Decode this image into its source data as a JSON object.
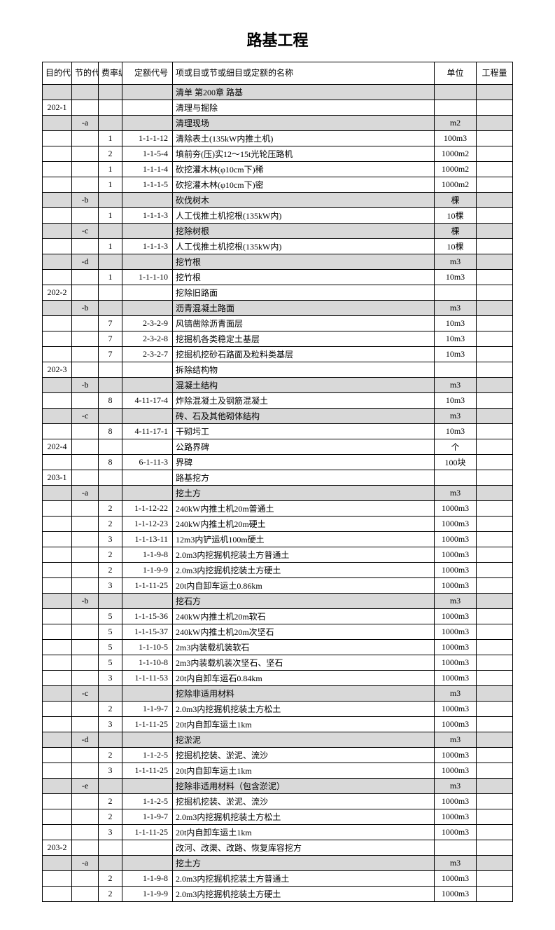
{
  "title": "路基工程",
  "header": {
    "mu": "目的代号",
    "jie": "节的代号",
    "fei": "费率编号",
    "ding": "定额代号",
    "name": "项或目或节或细目或定额的名称",
    "unit": "单位",
    "qty": "工程量"
  },
  "rows": [
    {
      "shaded": true,
      "mu": "",
      "jie": "",
      "fei": "",
      "ding": "",
      "name": "清单 第200章  路基",
      "unit": "",
      "qty": ""
    },
    {
      "shaded": false,
      "mu": "202-1",
      "jie": "",
      "fei": "",
      "ding": "",
      "name": "清理与掘除",
      "unit": "",
      "qty": ""
    },
    {
      "shaded": true,
      "mu": "",
      "jie": "-a",
      "fei": "",
      "ding": "",
      "name": "清理现场",
      "unit": "m2",
      "qty": ""
    },
    {
      "shaded": false,
      "mu": "",
      "jie": "",
      "fei": "1",
      "ding": "1-1-1-12",
      "name": "清除表土(135kW内推土机)",
      "unit": "100m3",
      "qty": ""
    },
    {
      "shaded": false,
      "mu": "",
      "jie": "",
      "fei": "2",
      "ding": "1-1-5-4",
      "name": "填前夯(压)实12～15t光轮压路机",
      "unit": "1000m2",
      "qty": ""
    },
    {
      "shaded": false,
      "mu": "",
      "jie": "",
      "fei": "1",
      "ding": "1-1-1-4",
      "name": "砍挖灌木林(φ10cm下)稀",
      "unit": "1000m2",
      "qty": ""
    },
    {
      "shaded": false,
      "mu": "",
      "jie": "",
      "fei": "1",
      "ding": "1-1-1-5",
      "name": "砍挖灌木林(φ10cm下)密",
      "unit": "1000m2",
      "qty": ""
    },
    {
      "shaded": true,
      "mu": "",
      "jie": "-b",
      "fei": "",
      "ding": "",
      "name": "砍伐树木",
      "unit": "棵",
      "qty": ""
    },
    {
      "shaded": false,
      "mu": "",
      "jie": "",
      "fei": "1",
      "ding": "1-1-1-3",
      "name": "人工伐推土机挖根(135kW内)",
      "unit": "10棵",
      "qty": ""
    },
    {
      "shaded": true,
      "mu": "",
      "jie": "-c",
      "fei": "",
      "ding": "",
      "name": "挖除树根",
      "unit": "棵",
      "qty": ""
    },
    {
      "shaded": false,
      "mu": "",
      "jie": "",
      "fei": "1",
      "ding": "1-1-1-3",
      "name": "人工伐推土机挖根(135kW内)",
      "unit": "10棵",
      "qty": ""
    },
    {
      "shaded": true,
      "mu": "",
      "jie": "-d",
      "fei": "",
      "ding": "",
      "name": "挖竹根",
      "unit": "m3",
      "qty": ""
    },
    {
      "shaded": false,
      "mu": "",
      "jie": "",
      "fei": "1",
      "ding": "1-1-1-10",
      "name": "挖竹根",
      "unit": "10m3",
      "qty": ""
    },
    {
      "shaded": false,
      "mu": "202-2",
      "jie": "",
      "fei": "",
      "ding": "",
      "name": "挖除旧路面",
      "unit": "",
      "qty": ""
    },
    {
      "shaded": true,
      "mu": "",
      "jie": "-b",
      "fei": "",
      "ding": "",
      "name": "沥青混凝土路面",
      "unit": "m3",
      "qty": ""
    },
    {
      "shaded": false,
      "mu": "",
      "jie": "",
      "fei": "7",
      "ding": "2-3-2-9",
      "name": "风镐凿除沥青面层",
      "unit": "10m3",
      "qty": ""
    },
    {
      "shaded": false,
      "mu": "",
      "jie": "",
      "fei": "7",
      "ding": "2-3-2-8",
      "name": "挖掘机各类稳定土基层",
      "unit": "10m3",
      "qty": ""
    },
    {
      "shaded": false,
      "mu": "",
      "jie": "",
      "fei": "7",
      "ding": "2-3-2-7",
      "name": "挖掘机挖砂石路面及粒料类基层",
      "unit": "10m3",
      "qty": ""
    },
    {
      "shaded": false,
      "mu": "202-3",
      "jie": "",
      "fei": "",
      "ding": "",
      "name": "拆除结构物",
      "unit": "",
      "qty": ""
    },
    {
      "shaded": true,
      "mu": "",
      "jie": "-b",
      "fei": "",
      "ding": "",
      "name": "混凝土结构",
      "unit": "m3",
      "qty": ""
    },
    {
      "shaded": false,
      "mu": "",
      "jie": "",
      "fei": "8",
      "ding": "4-11-17-4",
      "name": "炸除混凝土及钢筋混凝土",
      "unit": "10m3",
      "qty": ""
    },
    {
      "shaded": true,
      "mu": "",
      "jie": "-c",
      "fei": "",
      "ding": "",
      "name": "砖、石及其他砌体结构",
      "unit": "m3",
      "qty": ""
    },
    {
      "shaded": false,
      "mu": "",
      "jie": "",
      "fei": "8",
      "ding": "4-11-17-1",
      "name": "干砌圬工",
      "unit": "10m3",
      "qty": ""
    },
    {
      "shaded": false,
      "mu": "202-4",
      "jie": "",
      "fei": "",
      "ding": "",
      "name": "公路界碑",
      "unit": "个",
      "qty": ""
    },
    {
      "shaded": false,
      "mu": "",
      "jie": "",
      "fei": "8",
      "ding": "6-1-11-3",
      "name": "界碑",
      "unit": "100块",
      "qty": ""
    },
    {
      "shaded": false,
      "mu": "203-1",
      "jie": "",
      "fei": "",
      "ding": "",
      "name": "路基挖方",
      "unit": "",
      "qty": ""
    },
    {
      "shaded": true,
      "mu": "",
      "jie": "-a",
      "fei": "",
      "ding": "",
      "name": "挖土方",
      "unit": "m3",
      "qty": ""
    },
    {
      "shaded": false,
      "mu": "",
      "jie": "",
      "fei": "2",
      "ding": "1-1-12-22",
      "name": "240kW内推土机20m普通土",
      "unit": "1000m3",
      "qty": ""
    },
    {
      "shaded": false,
      "mu": "",
      "jie": "",
      "fei": "2",
      "ding": "1-1-12-23",
      "name": "240kW内推土机20m硬土",
      "unit": "1000m3",
      "qty": ""
    },
    {
      "shaded": false,
      "mu": "",
      "jie": "",
      "fei": "3",
      "ding": "1-1-13-11",
      "name": "12m3内铲运机100m硬土",
      "unit": "1000m3",
      "qty": ""
    },
    {
      "shaded": false,
      "mu": "",
      "jie": "",
      "fei": "2",
      "ding": "1-1-9-8",
      "name": "2.0m3内挖掘机挖装土方普通土",
      "unit": "1000m3",
      "qty": ""
    },
    {
      "shaded": false,
      "mu": "",
      "jie": "",
      "fei": "2",
      "ding": "1-1-9-9",
      "name": "2.0m3内挖掘机挖装土方硬土",
      "unit": "1000m3",
      "qty": ""
    },
    {
      "shaded": false,
      "mu": "",
      "jie": "",
      "fei": "3",
      "ding": "1-1-11-25",
      "name": "20t内自卸车运土0.86km",
      "unit": "1000m3",
      "qty": ""
    },
    {
      "shaded": true,
      "mu": "",
      "jie": "-b",
      "fei": "",
      "ding": "",
      "name": "挖石方",
      "unit": "m3",
      "qty": ""
    },
    {
      "shaded": false,
      "mu": "",
      "jie": "",
      "fei": "5",
      "ding": "1-1-15-36",
      "name": "240kW内推土机20m软石",
      "unit": "1000m3",
      "qty": ""
    },
    {
      "shaded": false,
      "mu": "",
      "jie": "",
      "fei": "5",
      "ding": "1-1-15-37",
      "name": "240kW内推土机20m次坚石",
      "unit": "1000m3",
      "qty": ""
    },
    {
      "shaded": false,
      "mu": "",
      "jie": "",
      "fei": "5",
      "ding": "1-1-10-5",
      "name": "2m3内装载机装软石",
      "unit": "1000m3",
      "qty": ""
    },
    {
      "shaded": false,
      "mu": "",
      "jie": "",
      "fei": "5",
      "ding": "1-1-10-8",
      "name": "2m3内装载机装次坚石、坚石",
      "unit": "1000m3",
      "qty": ""
    },
    {
      "shaded": false,
      "mu": "",
      "jie": "",
      "fei": "3",
      "ding": "1-1-11-53",
      "name": "20t内自卸车运石0.84km",
      "unit": "1000m3",
      "qty": ""
    },
    {
      "shaded": true,
      "mu": "",
      "jie": "-c",
      "fei": "",
      "ding": "",
      "name": "挖除非适用材料",
      "unit": "m3",
      "qty": ""
    },
    {
      "shaded": false,
      "mu": "",
      "jie": "",
      "fei": "2",
      "ding": "1-1-9-7",
      "name": "2.0m3内挖掘机挖装土方松土",
      "unit": "1000m3",
      "qty": ""
    },
    {
      "shaded": false,
      "mu": "",
      "jie": "",
      "fei": "3",
      "ding": "1-1-11-25",
      "name": "20t内自卸车运土1km",
      "unit": "1000m3",
      "qty": ""
    },
    {
      "shaded": true,
      "mu": "",
      "jie": "-d",
      "fei": "",
      "ding": "",
      "name": "挖淤泥",
      "unit": "m3",
      "qty": ""
    },
    {
      "shaded": false,
      "mu": "",
      "jie": "",
      "fei": "2",
      "ding": "1-1-2-5",
      "name": "挖掘机挖装、淤泥、流沙",
      "unit": "1000m3",
      "qty": ""
    },
    {
      "shaded": false,
      "mu": "",
      "jie": "",
      "fei": "3",
      "ding": "1-1-11-25",
      "name": "20t内自卸车运土1km",
      "unit": "1000m3",
      "qty": ""
    },
    {
      "shaded": true,
      "mu": "",
      "jie": "-e",
      "fei": "",
      "ding": "",
      "name": "挖除非适用材料（包含淤泥）",
      "unit": "m3",
      "qty": ""
    },
    {
      "shaded": false,
      "mu": "",
      "jie": "",
      "fei": "2",
      "ding": "1-1-2-5",
      "name": "挖掘机挖装、淤泥、流沙",
      "unit": "1000m3",
      "qty": ""
    },
    {
      "shaded": false,
      "mu": "",
      "jie": "",
      "fei": "2",
      "ding": "1-1-9-7",
      "name": "2.0m3内挖掘机挖装土方松土",
      "unit": "1000m3",
      "qty": ""
    },
    {
      "shaded": false,
      "mu": "",
      "jie": "",
      "fei": "3",
      "ding": "1-1-11-25",
      "name": "20t内自卸车运土1km",
      "unit": "1000m3",
      "qty": ""
    },
    {
      "shaded": false,
      "mu": "203-2",
      "jie": "",
      "fei": "",
      "ding": "",
      "name": "改河、改渠、改路、恢复库容挖方",
      "unit": "",
      "qty": ""
    },
    {
      "shaded": true,
      "mu": "",
      "jie": "-a",
      "fei": "",
      "ding": "",
      "name": "挖土方",
      "unit": "m3",
      "qty": ""
    },
    {
      "shaded": false,
      "mu": "",
      "jie": "",
      "fei": "2",
      "ding": "1-1-9-8",
      "name": "2.0m3内挖掘机挖装土方普通土",
      "unit": "1000m3",
      "qty": ""
    },
    {
      "shaded": false,
      "mu": "",
      "jie": "",
      "fei": "2",
      "ding": "1-1-9-9",
      "name": "2.0m3内挖掘机挖装土方硬土",
      "unit": "1000m3",
      "qty": ""
    }
  ],
  "colors": {
    "border": "#000000",
    "shaded": "#d9d9d9",
    "bg": "#ffffff"
  }
}
